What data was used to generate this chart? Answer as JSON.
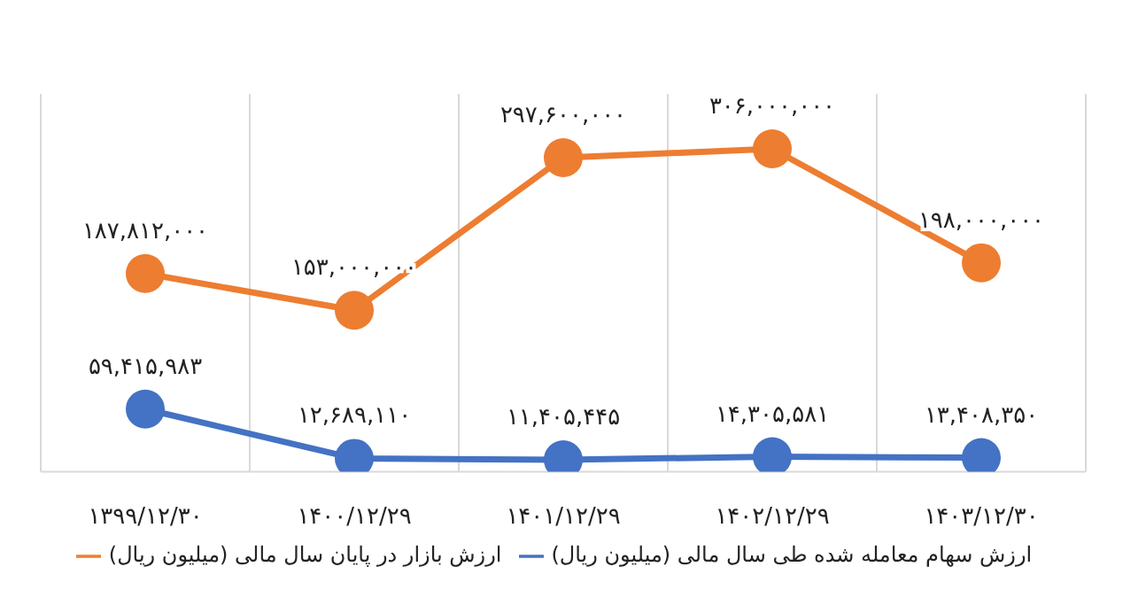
{
  "chart_data": {
    "type": "line",
    "categories": [
      "۱۳۹۹/۱۲/۳۰",
      "۱۴۰۰/۱۲/۲۹",
      "۱۴۰۱/۱۲/۲۹",
      "۱۴۰۲/۱۲/۲۹",
      "۱۴۰۳/۱۲/۳۰"
    ],
    "series": [
      {
        "name": "ارزش سهام معامله شده طی سال مالی (میلیون ریال)",
        "color": "#4472c4",
        "values": [
          59415983,
          12689110,
          11405445,
          14305581,
          13408350
        ],
        "value_labels": [
          "۵۹,۴۱۵,۹۸۳",
          "۱۲,۶۸۹,۱۱۰",
          "۱۱,۴۰۵,۴۴۵",
          "۱۴,۳۰۵,۵۸۱",
          "۱۳,۴۰۸,۳۵۰"
        ]
      },
      {
        "name": "ارزش بازار در پایان سال مالی (میلیون ریال)",
        "color": "#ed7d31",
        "values": [
          187812000,
          153000000,
          297600000,
          306000000,
          198000000
        ],
        "value_labels": [
          "۱۸۷,۸۱۲,۰۰۰",
          "۱۵۳,۰۰۰,۰۰۰",
          "۲۹۷,۶۰۰,۰۰۰",
          "۳۰۶,۰۰۰,۰۰۰",
          "۱۹۸,۰۰۰,۰۰۰"
        ]
      }
    ],
    "grid": "x",
    "legend": "bottom",
    "marker": "circle",
    "line_style": "solid"
  }
}
